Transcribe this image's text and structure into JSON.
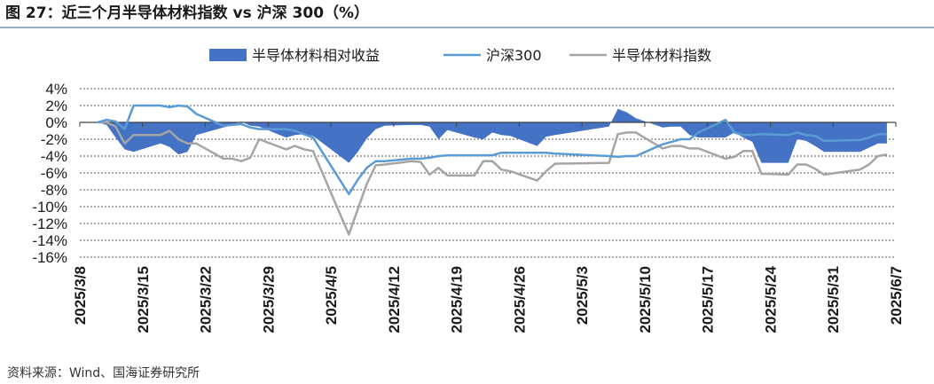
{
  "header": {
    "title": "图 27：近三个月半导体材料指数 vs 沪深 300（%）"
  },
  "footer": {
    "source": "资料来源：Wind、国海证券研究所"
  },
  "colors": {
    "area": "#4472c4",
    "hs300": "#5b9bd5",
    "index": "#a5a5a5",
    "grid": "#595959"
  },
  "chart_data": {
    "type": "area",
    "title": "",
    "xlabel": "",
    "ylabel": "",
    "ylim": [
      -16,
      4
    ],
    "y_ticks": [
      "4%",
      "2%",
      "0%",
      "-2%",
      "-4%",
      "-6%",
      "-8%",
      "-10%",
      "-12%",
      "-14%",
      "-16%"
    ],
    "y_tick_values": [
      4,
      2,
      0,
      -2,
      -4,
      -6,
      -8,
      -10,
      -12,
      -14,
      -16
    ],
    "x_ticks": [
      "2025/3/8",
      "2025/3/15",
      "2025/3/22",
      "2025/3/29",
      "2025/4/5",
      "2025/4/12",
      "2025/4/19",
      "2025/4/26",
      "2025/5/3",
      "2025/5/10",
      "2025/5/17",
      "2025/5/24",
      "2025/5/31",
      "2025/6/7"
    ],
    "grid": true,
    "legend": "top",
    "x": [
      "2025/3/10",
      "2025/3/11",
      "2025/3/12",
      "2025/3/13",
      "2025/3/14",
      "2025/3/17",
      "2025/3/18",
      "2025/3/19",
      "2025/3/20",
      "2025/3/21",
      "2025/3/24",
      "2025/3/25",
      "2025/3/26",
      "2025/3/27",
      "2025/3/28",
      "2025/3/31",
      "2025/4/1",
      "2025/4/2",
      "2025/4/3",
      "2025/4/7",
      "2025/4/8",
      "2025/4/9",
      "2025/4/10",
      "2025/4/11",
      "2025/4/14",
      "2025/4/15",
      "2025/4/16",
      "2025/4/17",
      "2025/4/18",
      "2025/4/21",
      "2025/4/22",
      "2025/4/23",
      "2025/4/24",
      "2025/4/25",
      "2025/4/28",
      "2025/4/29",
      "2025/4/30",
      "2025/5/6",
      "2025/5/7",
      "2025/5/8",
      "2025/5/9",
      "2025/5/12",
      "2025/5/13",
      "2025/5/14",
      "2025/5/15",
      "2025/5/16",
      "2025/5/19",
      "2025/5/20",
      "2025/5/21",
      "2025/5/22",
      "2025/5/23",
      "2025/5/26",
      "2025/5/27",
      "2025/5/28",
      "2025/5/29",
      "2025/5/30",
      "2025/6/3",
      "2025/6/4",
      "2025/6/5",
      "2025/6/6"
    ],
    "series": [
      {
        "name": "半导体材料相对收益",
        "type": "area",
        "values": [
          0,
          -0.3,
          -1.8,
          -3.2,
          -3.5,
          -2.5,
          -2.9,
          -3.8,
          -3.5,
          -1.5,
          -0.6,
          -0.3,
          0.1,
          -0.4,
          -0.5,
          -1.8,
          -1.5,
          -1.4,
          -1.6,
          -4.8,
          -3.5,
          -1.9,
          -0.8,
          -0.4,
          -0.3,
          -0.3,
          -0.5,
          -2.0,
          -0.9,
          -1.8,
          -2.0,
          -1.2,
          -1.5,
          -1.6,
          -2.8,
          -1.7,
          -1.5,
          -0.5,
          1.6,
          1.2,
          0.5,
          -0.6,
          -0.5,
          -0.5,
          -1.5,
          -1.8,
          -1.8,
          -1.2,
          -1.8,
          -2.3,
          -4.8,
          -4.8,
          -2.0,
          -2.2,
          -2.8,
          -3.5,
          -3.5,
          -3.0,
          -2.5,
          -2.5
        ]
      },
      {
        "name": "沪深300",
        "type": "line",
        "values": [
          0,
          0.3,
          0.1,
          -0.8,
          2.0,
          2.0,
          1.8,
          2.0,
          1.9,
          1.0,
          -0.4,
          -0.3,
          -0.2,
          -0.6,
          -0.8,
          -0.8,
          -1.0,
          -1.4,
          -1.8,
          -8.5,
          -6.8,
          -5.4,
          -4.6,
          -4.6,
          -4.3,
          -4.3,
          -4.2,
          -4.0,
          -3.9,
          -3.9,
          -3.9,
          -3.9,
          -3.6,
          -3.6,
          -3.6,
          -3.6,
          -3.7,
          -4.0,
          -4.1,
          -4.0,
          -4.0,
          -2.6,
          -2.3,
          -2.0,
          -2.0,
          -1.2,
          0.3,
          -1.2,
          -1.5,
          -1.5,
          -1.4,
          -1.5,
          -1.2,
          -1.5,
          -1.6,
          -2.2,
          -2.1,
          -1.8,
          -1.4,
          -1.4
        ]
      },
      {
        "name": "半导体材料指数",
        "type": "line",
        "values": [
          0,
          0,
          -0.5,
          -2.5,
          -1.5,
          -1.5,
          -1.0,
          -2.0,
          -2.5,
          -2.5,
          -4.3,
          -4.3,
          -4.6,
          -4.2,
          -2.0,
          -3.2,
          -2.8,
          -3.2,
          -3.4,
          -13.3,
          -10.3,
          -7.3,
          -5.1,
          -5.0,
          -4.6,
          -4.7,
          -6.2,
          -5.4,
          -6.3,
          -6.3,
          -4.6,
          -4.6,
          -5.6,
          -5.8,
          -6.9,
          -5.8,
          -4.9,
          -4.8,
          -1.4,
          -1.2,
          -1.2,
          -3.1,
          -2.8,
          -2.8,
          -3.1,
          -3.1,
          -4.3,
          -4.1,
          -3.4,
          -3.4,
          -6.1,
          -6.2,
          -5.0,
          -5.0,
          -5.5,
          -6.2,
          -5.6,
          -5.0,
          -4.0,
          -3.8
        ]
      }
    ]
  }
}
